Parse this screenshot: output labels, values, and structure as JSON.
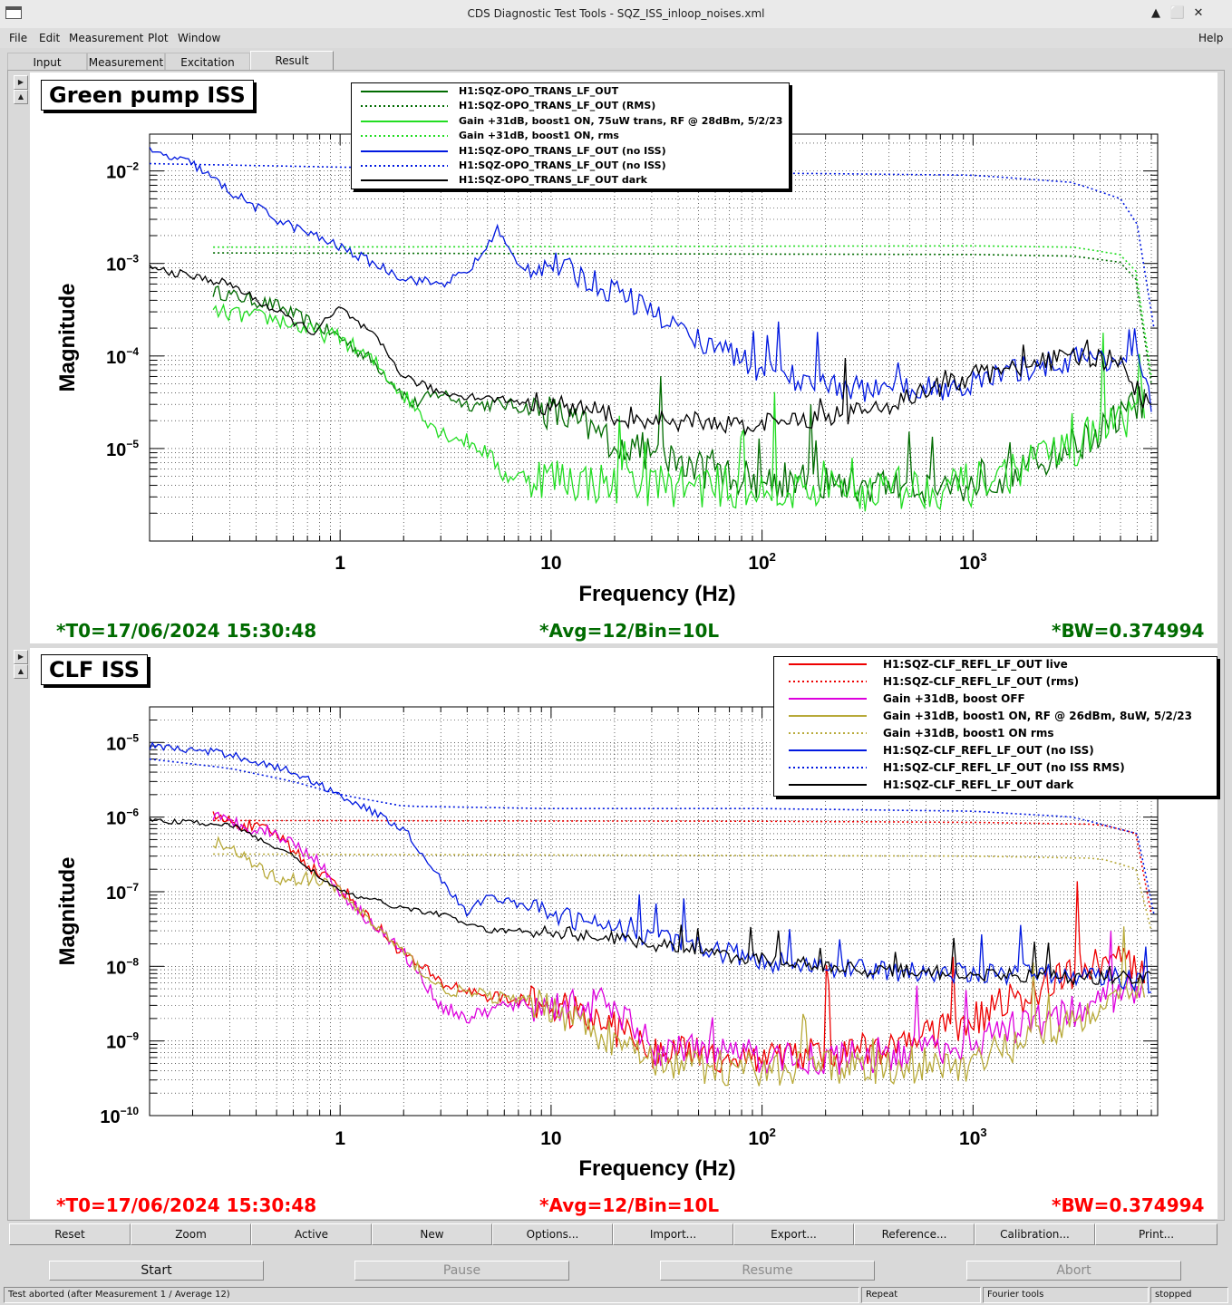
{
  "window": {
    "title": "CDS Diagnostic Test Tools - SQZ_ISS_inloop_noises.xml",
    "buttons": [
      "▲",
      "⬜",
      "✕"
    ]
  },
  "menu": [
    "File",
    "Edit",
    "Measurement",
    "Plot",
    "Window"
  ],
  "menu_help": "Help",
  "tabs": [
    "Input",
    "Measurement",
    "Excitation",
    "Result"
  ],
  "active_tab": "Result",
  "pads": [
    {
      "title": "Green pump ISS",
      "status": {
        "t0": "*T0=17/06/2024 15:30:48",
        "avg": "*Avg=12/Bin=10L",
        "bw": "*BW=0.374994"
      },
      "status_color": "#006b00",
      "legend": [
        {
          "label": "H1:SQZ-OPO_TRANS_LF_OUT",
          "color": "#006b00",
          "dash": false
        },
        {
          "label": "H1:SQZ-OPO_TRANS_LF_OUT (RMS)",
          "color": "#006b00",
          "dash": true
        },
        {
          "label": "Gain +31dB, boost1 ON, 75uW trans, RF @ 28dBm, 5/2/23",
          "color": "#22dd22",
          "dash": false
        },
        {
          "label": "Gain +31dB, boost1 ON, rms",
          "color": "#22dd22",
          "dash": true
        },
        {
          "label": "H1:SQZ-OPO_TRANS_LF_OUT (no ISS)",
          "color": "#0018e0",
          "dash": false
        },
        {
          "label": "H1:SQZ-OPO_TRANS_LF_OUT (no ISS)",
          "color": "#0018e0",
          "dash": true
        },
        {
          "label": "H1:SQZ-OPO_TRANS_LF_OUT dark",
          "color": "#000000",
          "dash": false
        }
      ]
    },
    {
      "title": "CLF ISS",
      "status": {
        "t0": "*T0=17/06/2024 15:30:48",
        "avg": "*Avg=12/Bin=10L",
        "bw": "*BW=0.374994"
      },
      "status_color": "#ff0000",
      "legend": [
        {
          "label": "H1:SQZ-CLF_REFL_LF_OUT live",
          "color": "#ee0000",
          "dash": false
        },
        {
          "label": "H1:SQZ-CLF_REFL_LF_OUT (rms)",
          "color": "#ee0000",
          "dash": true
        },
        {
          "label": "Gain +31dB, boost OFF",
          "color": "#dd00dd",
          "dash": false
        },
        {
          "label": "Gain +31dB, boost1 ON, RF @ 26dBm, 8uW, 5/2/23",
          "color": "#b8aa3a",
          "dash": false
        },
        {
          "label": "Gain +31dB, boost1 ON rms",
          "color": "#b8aa3a",
          "dash": true
        },
        {
          "label": "H1:SQZ-CLF_REFL_LF_OUT (no ISS)",
          "color": "#0018e0",
          "dash": false
        },
        {
          "label": "H1:SQZ-CLF_REFL_LF_OUT (no ISS RMS)",
          "color": "#0018e0",
          "dash": true
        },
        {
          "label": "H1:SQZ-CLF_REFL_LF_OUT dark",
          "color": "#000000",
          "dash": false
        }
      ]
    }
  ],
  "chart_data": [
    {
      "type": "line",
      "title": "Green pump ISS",
      "xlabel": "Frequency (Hz)",
      "ylabel": "Magnitude",
      "xscale": "log",
      "yscale": "log",
      "xlim": [
        0.125,
        7500
      ],
      "ylim": [
        1e-06,
        0.025
      ],
      "x_tick_labels": [
        "1",
        "10",
        "10^2",
        "10^3"
      ],
      "y_tick_labels": [
        "10^-5",
        "10^-4",
        "10^-3",
        "10^-2"
      ],
      "grid": true,
      "legend_position": "top-center",
      "series": [
        {
          "name": "H1:SQZ-OPO_TRANS_LF_OUT",
          "color": "#006b00",
          "dash": false,
          "noise": 0.25,
          "x": [
            0.25,
            0.5,
            0.75,
            1,
            1.5,
            2.2,
            3,
            4,
            6,
            10,
            20,
            50,
            100,
            300,
            1000,
            2000,
            4000,
            6500
          ],
          "y": [
            0.0005,
            0.00035,
            0.00022,
            0.00016,
            8e-05,
            3e-05,
            4e-05,
            3e-05,
            3e-05,
            2.5e-05,
            1.2e-05,
            6e-06,
            4.5e-06,
            4e-06,
            4e-06,
            7e-06,
            1.5e-05,
            3.5e-05
          ]
        },
        {
          "name": "H1:SQZ-OPO_TRANS_LF_OUT (RMS)",
          "color": "#006b00",
          "dash": true,
          "noise": 0,
          "x": [
            0.25,
            1000,
            3000,
            5500,
            6500,
            7000
          ],
          "y": [
            0.0013,
            0.00125,
            0.0012,
            0.001,
            0.0004,
            5e-05
          ]
        },
        {
          "name": "Gain +31dB, boost1 ON, 75uW trans, RF @ 28dBm, 5/2/23",
          "color": "#22dd22",
          "dash": false,
          "noise": 0.3,
          "x": [
            0.25,
            0.5,
            0.75,
            1,
            1.5,
            2.2,
            3,
            4,
            5,
            6,
            10,
            20,
            50,
            100,
            300,
            1000,
            2000,
            4000,
            6500
          ],
          "y": [
            0.0003,
            0.00025,
            0.00018,
            0.00016,
            8e-05,
            3e-05,
            1.5e-05,
            1.2e-05,
            9e-06,
            5e-06,
            5e-06,
            4e-06,
            4e-06,
            3.5e-06,
            3.5e-06,
            4e-06,
            7e-06,
            1.5e-05,
            3e-05
          ]
        },
        {
          "name": "Gain +31dB, boost1 ON, rms",
          "color": "#22dd22",
          "dash": true,
          "noise": 0,
          "x": [
            0.25,
            1000,
            3000,
            5500,
            6500,
            7000
          ],
          "y": [
            0.0015,
            0.00155,
            0.0015,
            0.0012,
            0.0005,
            6e-05
          ]
        },
        {
          "name": "H1:SQZ-OPO_TRANS_LF_OUT (no ISS)",
          "color": "#0018e0",
          "dash": false,
          "noise": 0.18,
          "x": [
            0.125,
            0.2,
            0.3,
            0.5,
            1,
            2,
            3,
            4,
            5,
            5.5,
            7,
            10,
            20,
            50,
            100,
            200,
            400,
            1000,
            2000,
            4000,
            6000,
            7000
          ],
          "y": [
            0.016,
            0.012,
            0.006,
            0.003,
            0.0015,
            0.0007,
            0.0006,
            0.0008,
            0.0015,
            0.0025,
            0.0009,
            0.001,
            0.0005,
            0.00015,
            7e-05,
            5e-05,
            4e-05,
            5e-05,
            8e-05,
            0.0001,
            8e-05,
            3e-05
          ]
        },
        {
          "name": "H1:SQZ-OPO_TRANS_LF_OUT (no ISS)",
          "color": "#0018e0",
          "dash": true,
          "noise": 0,
          "x": [
            0.125,
            10,
            100,
            1000,
            3000,
            5000,
            6500,
            7200
          ],
          "y": [
            0.012,
            0.01,
            0.0095,
            0.009,
            0.0075,
            0.005,
            0.002,
            0.0002
          ]
        },
        {
          "name": "H1:SQZ-OPO_TRANS_LF_OUT dark",
          "color": "#000000",
          "dash": false,
          "noise": 0.15,
          "x": [
            0.125,
            0.3,
            0.5,
            0.75,
            1,
            1.5,
            2,
            3,
            5,
            10,
            30,
            100,
            300,
            1000,
            3000,
            5000,
            7000
          ],
          "y": [
            0.0009,
            0.0006,
            0.0003,
            0.00018,
            0.00033,
            0.00015,
            6e-05,
            4e-05,
            3.5e-05,
            3e-05,
            2e-05,
            1.8e-05,
            2.5e-05,
            6e-05,
            0.0001,
            8e-05,
            2.5e-05
          ]
        }
      ]
    },
    {
      "type": "line",
      "title": "CLF ISS",
      "xlabel": "Frequency (Hz)",
      "ylabel": "Magnitude",
      "xscale": "log",
      "yscale": "log",
      "xlim": [
        0.125,
        7500
      ],
      "ylim": [
        1e-10,
        3e-05
      ],
      "x_tick_labels": [
        "1",
        "10",
        "10^2",
        "10^3"
      ],
      "y_tick_labels": [
        "10^-10",
        "10^-9",
        "10^-8",
        "10^-7",
        "10^-6",
        "10^-5"
      ],
      "grid": true,
      "legend_position": "top-right",
      "series": [
        {
          "name": "H1:SQZ-CLF_REFL_LF_OUT live",
          "color": "#ee0000",
          "dash": false,
          "noise": 0.3,
          "x": [
            0.25,
            0.5,
            0.75,
            1,
            1.3,
            2,
            3,
            5,
            10,
            20,
            30,
            100,
            400,
            1000,
            2000,
            4000,
            6500
          ],
          "y": [
            1e-06,
            6e-07,
            2e-07,
            1.2e-07,
            5e-08,
            1.5e-08,
            6e-09,
            4e-09,
            3e-09,
            1.5e-09,
            7e-10,
            6e-10,
            8e-10,
            2e-09,
            5e-09,
            1.2e-08,
            1e-08
          ]
        },
        {
          "name": "H1:SQZ-CLF_REFL_LF_OUT (rms)",
          "color": "#ee0000",
          "dash": true,
          "noise": 0,
          "x": [
            0.25,
            100,
            1000,
            4000,
            6000,
            7000
          ],
          "y": [
            9e-07,
            8.8e-07,
            8.5e-07,
            8e-07,
            6e-07,
            5e-08
          ]
        },
        {
          "name": "Gain +31dB, boost OFF",
          "color": "#dd00dd",
          "dash": false,
          "noise": 0.3,
          "x": [
            0.25,
            0.5,
            0.75,
            1,
            2,
            3,
            4,
            6,
            10,
            20,
            30,
            100,
            400,
            1000,
            3000,
            6500
          ],
          "y": [
            1e-06,
            6e-07,
            3e-07,
            1e-07,
            1.5e-08,
            3e-09,
            2e-09,
            3e-09,
            3e-09,
            3e-09,
            8e-10,
            6e-10,
            6e-10,
            1e-09,
            2.5e-09,
            6e-09
          ]
        },
        {
          "name": "Gain +31dB, boost1 ON, RF @ 26dBm, 8uW, 5/2/23",
          "color": "#b8aa3a",
          "dash": false,
          "noise": 0.3,
          "x": [
            0.25,
            0.5,
            0.75,
            1,
            2,
            3,
            5,
            10,
            20,
            30,
            100,
            1000,
            3000,
            6500
          ],
          "y": [
            5e-07,
            1.5e-07,
            1.5e-07,
            1e-07,
            1.5e-08,
            5e-09,
            4e-09,
            3e-09,
            1e-09,
            5e-10,
            4e-10,
            5e-10,
            2e-09,
            5e-09
          ]
        },
        {
          "name": "Gain +31dB, boost1 ON rms",
          "color": "#b8aa3a",
          "dash": true,
          "noise": 0,
          "x": [
            0.25,
            1000,
            4000,
            6000,
            7000
          ],
          "y": [
            3.2e-07,
            3e-07,
            2.8e-07,
            2e-07,
            3e-08
          ]
        },
        {
          "name": "H1:SQZ-CLF_REFL_LF_OUT (no ISS)",
          "color": "#0018e0",
          "dash": false,
          "noise": 0.18,
          "x": [
            0.125,
            0.3,
            0.6,
            1,
            2,
            3,
            4,
            5,
            10,
            30,
            100,
            300,
            1000,
            3000,
            7000
          ],
          "y": [
            9e-06,
            7e-06,
            4e-06,
            2e-06,
            7e-07,
            1.5e-07,
            5e-08,
            9e-08,
            5e-08,
            2.5e-08,
            1.2e-08,
            9e-09,
            8e-09,
            8e-09,
            6e-09
          ]
        },
        {
          "name": "H1:SQZ-CLF_REFL_LF_OUT (no ISS RMS)",
          "color": "#0018e0",
          "dash": true,
          "noise": 0,
          "x": [
            0.125,
            0.3,
            0.6,
            1,
            2,
            10,
            100,
            1000,
            3000,
            6000,
            7200
          ],
          "y": [
            6e-06,
            4.5e-06,
            3e-06,
            2e-06,
            1.4e-06,
            1.3e-06,
            1.3e-06,
            1.2e-06,
            1e-06,
            6e-07,
            5e-08
          ]
        },
        {
          "name": "H1:SQZ-CLF_REFL_LF_OUT dark",
          "color": "#000000",
          "dash": false,
          "noise": 0.12,
          "x": [
            0.125,
            0.3,
            0.6,
            1,
            2,
            3,
            5,
            10,
            30,
            100,
            300,
            1000,
            3000,
            7000
          ],
          "y": [
            9e-07,
            8e-07,
            3e-07,
            1e-07,
            6e-08,
            5e-08,
            3e-08,
            3e-08,
            2e-08,
            1.2e-08,
            9e-09,
            8e-09,
            7e-09,
            7e-09
          ]
        }
      ]
    }
  ],
  "buttons": [
    "Reset",
    "Zoom",
    "Active",
    "New",
    "Options...",
    "Import...",
    "Export...",
    "Reference...",
    "Calibration...",
    "Print..."
  ],
  "controls": [
    "Start",
    "Pause",
    "Resume",
    "Abort"
  ],
  "statusbar": {
    "message": "Test aborted (after Measurement 1 / Average 12)",
    "repeat": "Repeat",
    "tools": "Fourier tools",
    "state": "stopped"
  }
}
